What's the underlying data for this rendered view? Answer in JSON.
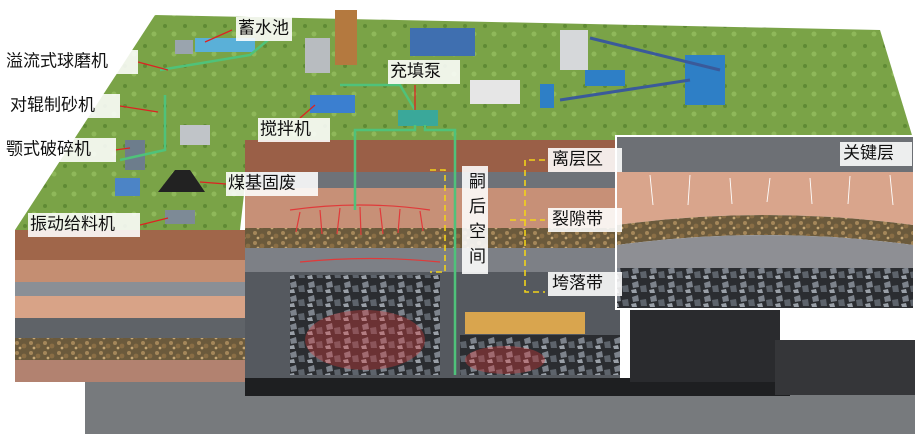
{
  "labels": {
    "reservoir": "蓄水池",
    "ball_mill": "溢流式球磨机",
    "roller_sand_maker": "对辊制砂机",
    "jaw_crusher": "颚式破碎机",
    "vibrating_feeder": "振动给料机",
    "coal_solid_waste": "煤基固废",
    "mixer": "搅拌机",
    "filling_pump": "充填泵",
    "separation_zone": "离层区",
    "fracture_zone": "裂隙带",
    "caving_zone": "垮落带",
    "key_stratum": "关键层",
    "subsequent_space": "嗣后空间"
  }
}
